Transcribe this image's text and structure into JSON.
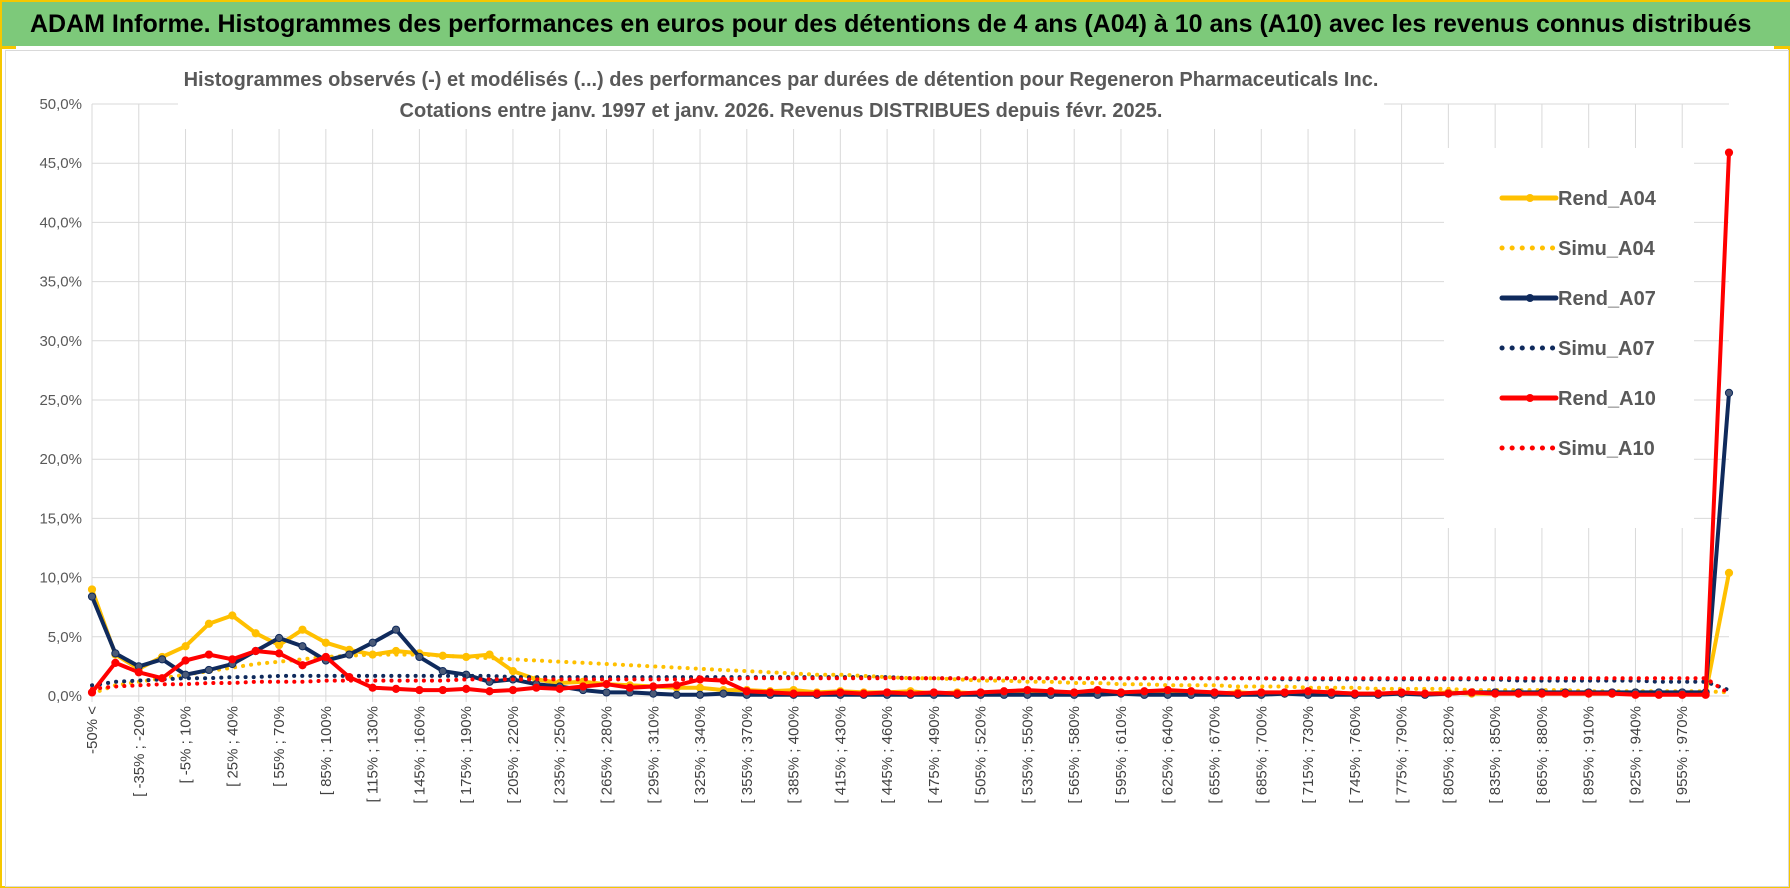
{
  "header": {
    "title": "ADAM Informe. Histogrammes des performances en euros pour des détentions de 4 ans (A04) à 10 ans (A10) avec les revenus connus distribués"
  },
  "chart_data": {
    "type": "line",
    "title": "Histogrammes observés (-) et modélisés (...) des performances par durées de détention pour Regeneron Pharmaceuticals Inc.",
    "subtitle": "Cotations entre janv. 1997 et janv. 2026. Revenus DISTRIBUES depuis févr. 2025.",
    "xlabel": "",
    "ylabel": "",
    "ylim": [
      0,
      50
    ],
    "y_ticks": [
      "0,0%",
      "5,0%",
      "10,0%",
      "15,0%",
      "20,0%",
      "25,0%",
      "30,0%",
      "35,0%",
      "40,0%",
      "45,0%",
      "50,0%"
    ],
    "grid": true,
    "legend_position": "right",
    "x_tick_labels": [
      "-50% <",
      "[ -35% ; -20%",
      "[ -5% ; 10%",
      "[ 25% ; 40%",
      "[ 55% ; 70%",
      "[ 85% ; 100%",
      "[ 115% ; 130%",
      "[ 145% ; 160%",
      "[ 175% ; 190%",
      "[ 205% ; 220%",
      "[ 235% ; 250%",
      "[ 265% ; 280%",
      "[ 295% ; 310%",
      "[ 325% ; 340%",
      "[ 355% ; 370%",
      "[ 385% ; 400%",
      "[ 415% ; 430%",
      "[ 445% ; 460%",
      "[ 475% ; 490%",
      "[ 505% ; 520%",
      "[ 535% ; 550%",
      "[ 565% ; 580%",
      "[ 595% ; 610%",
      "[ 625% ; 640%",
      "[ 655% ; 670%",
      "[ 685% ; 700%",
      "[ 715% ; 730%",
      "[ 745% ; 760%",
      "[ 775% ; 790%",
      "[ 805% ; 820%",
      "[ 835% ; 850%",
      "[ 865% ; 880%",
      "[ 895% ; 910%",
      "[ 925% ; 940%",
      "[ 955% ; 970%"
    ],
    "series": [
      {
        "name": "Rend_A04",
        "color": "#ffc000",
        "style": "solid",
        "markers": true,
        "values": [
          9.0,
          3.5,
          2.3,
          3.3,
          4.2,
          6.1,
          6.8,
          5.3,
          4.3,
          5.6,
          4.5,
          3.9,
          3.5,
          3.8,
          3.6,
          3.4,
          3.3,
          3.5,
          2.1,
          1.4,
          1.1,
          1.2,
          1.0,
          0.9,
          0.8,
          0.7,
          0.7,
          0.5,
          0.5,
          0.4,
          0.5,
          0.3,
          0.4,
          0.3,
          0.3,
          0.4,
          0.2,
          0.3,
          0.2,
          0.3,
          0.2,
          0.3,
          0.2,
          0.2,
          0.3,
          0.2,
          0.3,
          0.2,
          0.2,
          0.3,
          0.2,
          0.2,
          0.2,
          0.3,
          0.2,
          0.2,
          0.2,
          0.2,
          0.3,
          0.2,
          0.2,
          0.2,
          0.2,
          0.2,
          0.2,
          0.2,
          0.3,
          0.2,
          0.2,
          0.2,
          10.4
        ]
      },
      {
        "name": "Simu_A04",
        "color": "#ffc000",
        "style": "dotted",
        "markers": false,
        "values": [
          0.2,
          0.9,
          1.2,
          1.5,
          1.8,
          2.1,
          2.4,
          2.7,
          2.9,
          3.1,
          3.3,
          3.4,
          3.5,
          3.5,
          3.5,
          3.4,
          3.3,
          3.2,
          3.1,
          3.0,
          2.9,
          2.8,
          2.7,
          2.6,
          2.5,
          2.4,
          2.3,
          2.2,
          2.1,
          2.0,
          1.9,
          1.8,
          1.8,
          1.7,
          1.6,
          1.5,
          1.5,
          1.4,
          1.3,
          1.3,
          1.2,
          1.2,
          1.1,
          1.1,
          1.0,
          1.0,
          0.9,
          0.9,
          0.9,
          0.8,
          0.8,
          0.8,
          0.7,
          0.7,
          0.7,
          0.6,
          0.6,
          0.6,
          0.6,
          0.5,
          0.5,
          0.5,
          0.5,
          0.5,
          0.4,
          0.4,
          0.4,
          0.4,
          0.4,
          0.4,
          0.3
        ]
      },
      {
        "name": "Rend_A07",
        "color": "#0f2a5c",
        "style": "solid",
        "markers": true,
        "values": [
          8.4,
          3.6,
          2.5,
          3.1,
          1.8,
          2.2,
          2.7,
          3.8,
          4.9,
          4.2,
          3.0,
          3.5,
          4.5,
          5.6,
          3.3,
          2.1,
          1.8,
          1.2,
          1.4,
          1.0,
          0.8,
          0.5,
          0.3,
          0.3,
          0.2,
          0.1,
          0.1,
          0.2,
          0.1,
          0.1,
          0.1,
          0.1,
          0.1,
          0.1,
          0.1,
          0.1,
          0.1,
          0.1,
          0.1,
          0.1,
          0.1,
          0.1,
          0.1,
          0.1,
          0.2,
          0.1,
          0.1,
          0.1,
          0.1,
          0.1,
          0.1,
          0.2,
          0.1,
          0.1,
          0.1,
          0.1,
          0.2,
          0.1,
          0.2,
          0.3,
          0.3,
          0.3,
          0.3,
          0.3,
          0.3,
          0.3,
          0.3,
          0.3,
          0.3,
          0.3,
          25.6
        ]
      },
      {
        "name": "Simu_A07",
        "color": "#0f2a5c",
        "style": "dotted",
        "markers": false,
        "values": [
          0.9,
          1.2,
          1.3,
          1.4,
          1.5,
          1.5,
          1.6,
          1.6,
          1.7,
          1.7,
          1.7,
          1.7,
          1.7,
          1.7,
          1.7,
          1.7,
          1.7,
          1.7,
          1.6,
          1.6,
          1.6,
          1.6,
          1.6,
          1.6,
          1.6,
          1.6,
          1.6,
          1.6,
          1.6,
          1.6,
          1.6,
          1.6,
          1.6,
          1.6,
          1.6,
          1.5,
          1.5,
          1.5,
          1.5,
          1.5,
          1.5,
          1.5,
          1.5,
          1.5,
          1.5,
          1.5,
          1.5,
          1.5,
          1.5,
          1.5,
          1.5,
          1.4,
          1.4,
          1.4,
          1.4,
          1.4,
          1.4,
          1.4,
          1.4,
          1.4,
          1.4,
          1.3,
          1.3,
          1.3,
          1.3,
          1.3,
          1.3,
          1.2,
          1.2,
          1.2,
          0.5
        ]
      },
      {
        "name": "Rend_A10",
        "color": "#ff0000",
        "style": "solid",
        "markers": true,
        "values": [
          0.3,
          2.8,
          2.0,
          1.5,
          3.0,
          3.5,
          3.1,
          3.8,
          3.6,
          2.6,
          3.3,
          1.6,
          0.7,
          0.6,
          0.5,
          0.5,
          0.6,
          0.4,
          0.5,
          0.7,
          0.6,
          0.8,
          1.0,
          0.7,
          0.8,
          0.9,
          1.4,
          1.3,
          0.4,
          0.3,
          0.2,
          0.2,
          0.3,
          0.2,
          0.3,
          0.2,
          0.3,
          0.2,
          0.3,
          0.4,
          0.5,
          0.4,
          0.3,
          0.5,
          0.3,
          0.4,
          0.5,
          0.4,
          0.3,
          0.2,
          0.3,
          0.3,
          0.4,
          0.3,
          0.2,
          0.2,
          0.3,
          0.2,
          0.2,
          0.3,
          0.2,
          0.2,
          0.2,
          0.2,
          0.2,
          0.2,
          0.1,
          0.1,
          0.1,
          0.1,
          45.9
        ]
      },
      {
        "name": "Simu_A10",
        "color": "#ff0000",
        "style": "dotted",
        "markers": false,
        "values": [
          0.6,
          0.8,
          0.9,
          1.0,
          1.0,
          1.1,
          1.1,
          1.2,
          1.2,
          1.2,
          1.3,
          1.3,
          1.3,
          1.3,
          1.3,
          1.3,
          1.4,
          1.4,
          1.4,
          1.4,
          1.4,
          1.4,
          1.4,
          1.4,
          1.4,
          1.4,
          1.4,
          1.4,
          1.5,
          1.5,
          1.5,
          1.5,
          1.5,
          1.5,
          1.5,
          1.5,
          1.5,
          1.5,
          1.5,
          1.5,
          1.5,
          1.5,
          1.5,
          1.5,
          1.5,
          1.5,
          1.5,
          1.5,
          1.5,
          1.5,
          1.5,
          1.5,
          1.5,
          1.5,
          1.5,
          1.5,
          1.5,
          1.5,
          1.5,
          1.5,
          1.5,
          1.5,
          1.5,
          1.5,
          1.5,
          1.5,
          1.5,
          1.5,
          1.5,
          1.5,
          0.2
        ]
      }
    ]
  }
}
